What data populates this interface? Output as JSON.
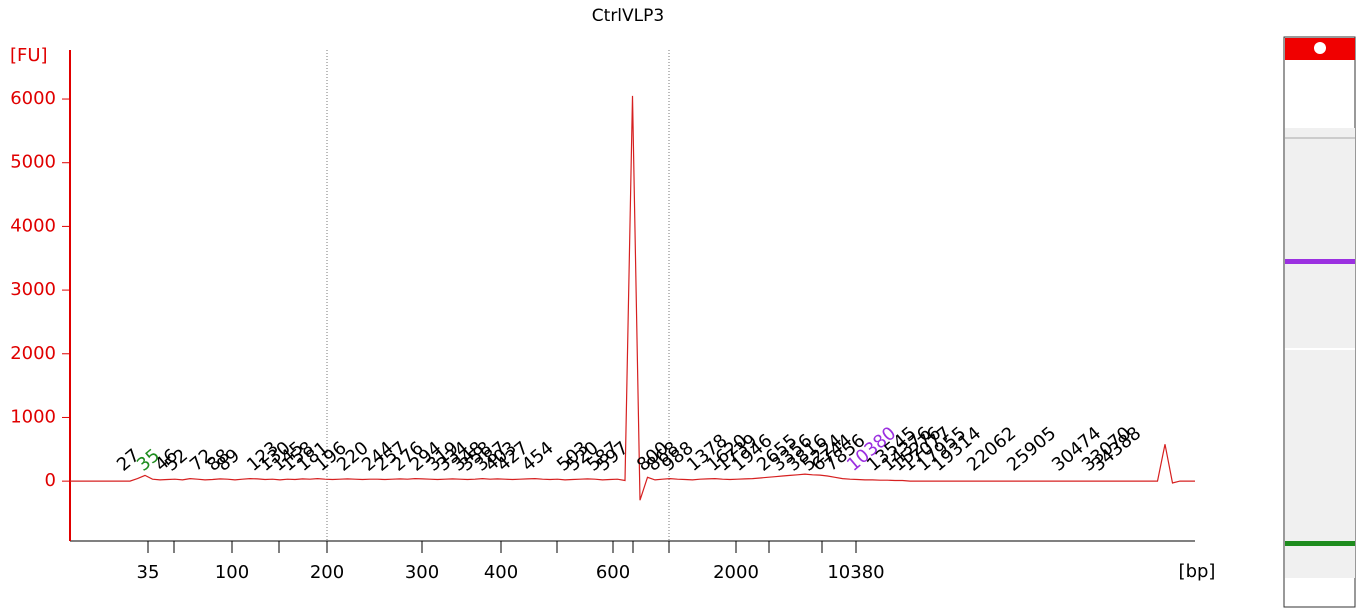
{
  "chart_data": {
    "type": "line",
    "title": "CtrlVLP3",
    "y_label": "[FU]",
    "x_label": "[bp]",
    "ylim": [
      -940,
      6770
    ],
    "yticks": [
      0,
      1000,
      2000,
      3000,
      4000,
      5000,
      6000
    ],
    "x_tick_labels": [
      35,
      null,
      100,
      null,
      200,
      300,
      400,
      null,
      600,
      null,
      null,
      2000,
      null,
      null,
      10380
    ],
    "color": "#d62020",
    "axis_color": "#e00000",
    "lower_marker": 35,
    "lower_marker_color": "#1e8c1e",
    "upper_marker": 10380,
    "upper_marker_color": "#9b30e0",
    "peak_labels": [
      27,
      35,
      46,
      52,
      72,
      88,
      89,
      123,
      130,
      145,
      158,
      181,
      196,
      220,
      244,
      257,
      276,
      294,
      319,
      334,
      348,
      358,
      387,
      403,
      427,
      454,
      503,
      520,
      587,
      597,
      800,
      868,
      988,
      1378,
      1620,
      1739,
      1946,
      2655,
      3356,
      3816,
      5224,
      6744,
      7856,
      10380,
      13545,
      14376,
      15276,
      17077,
      17955,
      19314,
      22062,
      25905,
      30474,
      33070,
      34388
    ],
    "values": [
      0,
      0,
      0,
      0,
      0,
      0,
      0,
      0,
      0,
      40,
      90,
      30,
      20,
      25,
      30,
      20,
      40,
      30,
      20,
      25,
      35,
      30,
      20,
      30,
      40,
      35,
      25,
      30,
      20,
      30,
      25,
      35,
      30,
      40,
      30,
      25,
      30,
      35,
      30,
      25,
      30,
      30,
      25,
      30,
      35,
      30,
      40,
      35,
      30,
      25,
      30,
      35,
      30,
      25,
      30,
      40,
      30,
      35,
      30,
      25,
      30,
      35,
      40,
      30,
      25,
      30,
      20,
      25,
      30,
      35,
      30,
      20,
      25,
      30,
      10,
      6050,
      -300,
      60,
      20,
      30,
      40,
      30,
      25,
      20,
      30,
      35,
      40,
      30,
      25,
      30,
      35,
      40,
      50,
      60,
      70,
      80,
      90,
      100,
      110,
      100,
      95,
      80,
      60,
      40,
      30,
      25,
      20,
      20,
      15,
      15,
      10,
      10,
      0,
      0,
      0,
      0,
      0,
      0,
      0,
      0,
      0,
      0,
      0,
      0,
      0,
      0,
      0,
      0,
      0,
      0,
      0,
      0,
      0,
      0,
      0,
      0,
      0,
      0,
      0,
      0,
      0,
      0,
      0,
      0,
      0,
      0,
      580,
      -30,
      0,
      0,
      0
    ]
  }
}
